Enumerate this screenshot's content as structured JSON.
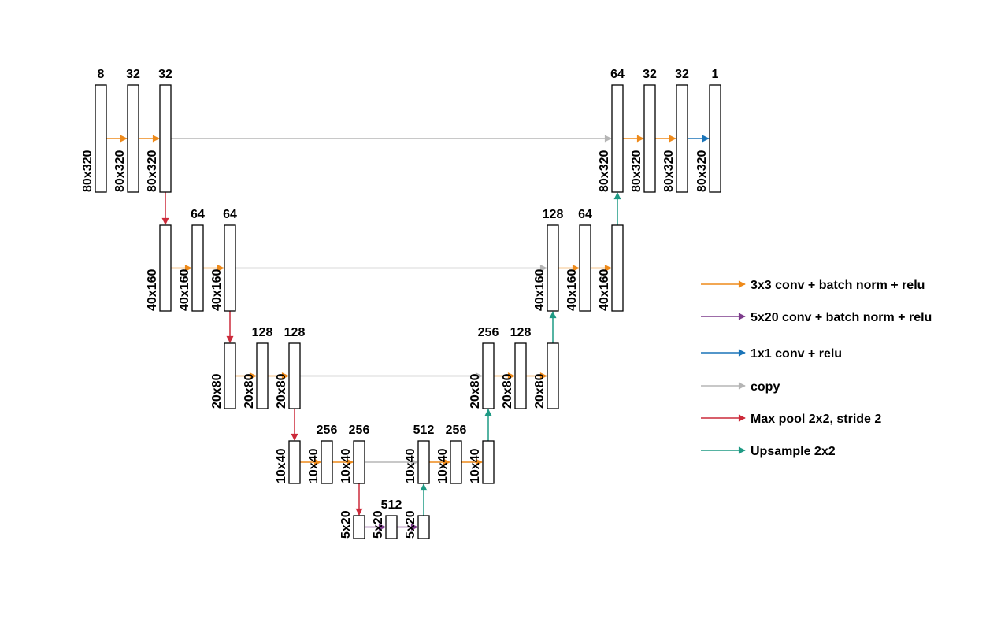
{
  "colors": {
    "conv3": "#ee8a1a",
    "conv5x20": "#7d3c8c",
    "conv1": "#1a74b8",
    "copy": "#b5b5b5",
    "pool": "#cc2a3a",
    "up": "#1e9a84"
  },
  "blocks": [
    {
      "id": "e1a",
      "channels": "8",
      "size": "80x320"
    },
    {
      "id": "e1b",
      "channels": "32",
      "size": "80x320"
    },
    {
      "id": "e1c",
      "channels": "32",
      "size": "80x320"
    },
    {
      "id": "e2a",
      "channels": "",
      "size": "40x160"
    },
    {
      "id": "e2b",
      "channels": "64",
      "size": "40x160"
    },
    {
      "id": "e2c",
      "channels": "64",
      "size": "40x160"
    },
    {
      "id": "e3a",
      "channels": "",
      "size": "20x80"
    },
    {
      "id": "e3b",
      "channels": "128",
      "size": "20x80"
    },
    {
      "id": "e3c",
      "channels": "128",
      "size": "20x80"
    },
    {
      "id": "e4a",
      "channels": "",
      "size": "10x40"
    },
    {
      "id": "e4b",
      "channels": "256",
      "size": "10x40"
    },
    {
      "id": "e4c",
      "channels": "256",
      "size": "10x40"
    },
    {
      "id": "b1",
      "channels": "",
      "size": "5x20"
    },
    {
      "id": "b2",
      "channels": "512",
      "size": "5x20"
    },
    {
      "id": "b3",
      "channels": "",
      "size": "5x20"
    },
    {
      "id": "d4a",
      "channels": "512",
      "size": "10x40"
    },
    {
      "id": "d4b",
      "channels": "256",
      "size": "10x40"
    },
    {
      "id": "d4c",
      "channels": "",
      "size": "10x40"
    },
    {
      "id": "d3a",
      "channels": "256",
      "size": "20x80"
    },
    {
      "id": "d3b",
      "channels": "128",
      "size": "20x80"
    },
    {
      "id": "d3c",
      "channels": "",
      "size": "20x80"
    },
    {
      "id": "d2a",
      "channels": "128",
      "size": "40x160"
    },
    {
      "id": "d2b",
      "channels": "64",
      "size": "40x160"
    },
    {
      "id": "d2c",
      "channels": "",
      "size": "40x160"
    },
    {
      "id": "d1a",
      "channels": "64",
      "size": "80x320"
    },
    {
      "id": "d1b",
      "channels": "32",
      "size": "80x320"
    },
    {
      "id": "d1c",
      "channels": "32",
      "size": "80x320"
    },
    {
      "id": "d1d",
      "channels": "1",
      "size": "80x320"
    }
  ],
  "legend": [
    {
      "type": "conv3",
      "label": "3x3 conv + batch norm + relu"
    },
    {
      "type": "conv5x20",
      "label": "5x20 conv + batch norm + relu"
    },
    {
      "type": "conv1",
      "label": "1x1 conv + relu"
    },
    {
      "type": "copy",
      "label": "copy"
    },
    {
      "type": "pool",
      "label": "Max pool 2x2, stride 2"
    },
    {
      "type": "up",
      "label": "Upsample 2x2"
    }
  ]
}
